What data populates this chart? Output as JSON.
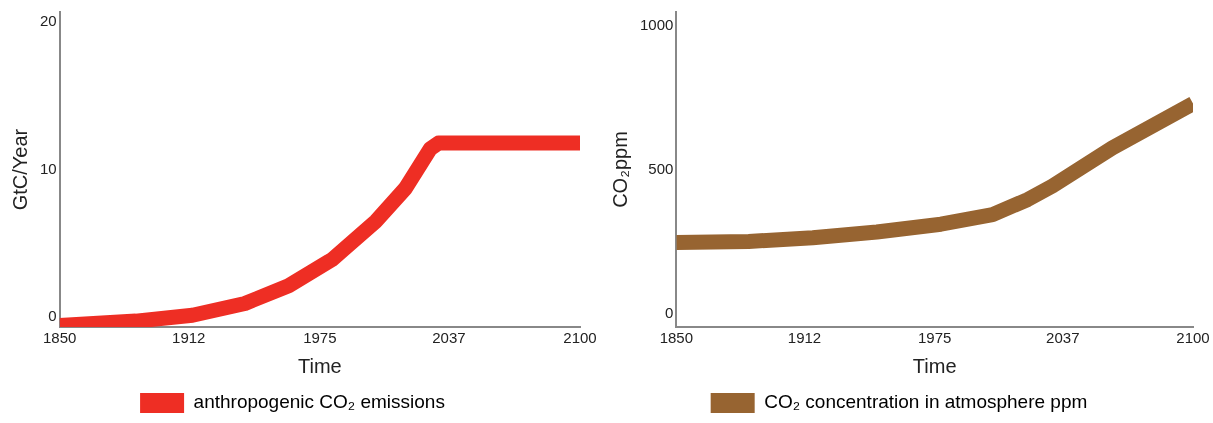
{
  "chart_data": [
    {
      "type": "line",
      "xlabel": "Time",
      "ylabel": "GtC/Year",
      "xlim": [
        1850,
        2100
      ],
      "xticks": [
        1850,
        1912,
        1975,
        2037,
        2100
      ],
      "ylim": [
        -0.7,
        20.7
      ],
      "yticks": [
        0,
        10,
        20
      ],
      "grid": false,
      "legend": "bottom",
      "marker": "none",
      "line_style": "solid",
      "series": [
        {
          "name": "anthropogenic CO₂ emissions",
          "color": "#ee2e24",
          "x": [
            1850,
            1886.6,
            1913.8,
            1939,
            1960,
            1981,
            2002,
            2016,
            2028,
            2032,
            2100
          ],
          "values": [
            -0.6,
            -0.3,
            0.1,
            0.9,
            2.1,
            3.9,
            6.5,
            8.7,
            11.4,
            11.8,
            11.8
          ]
        }
      ]
    },
    {
      "type": "line",
      "xlabel": "Time",
      "ylabel": "CO₂ppm",
      "xlim": [
        1850,
        2100
      ],
      "xticks": [
        1850,
        1912,
        1975,
        2037,
        2100
      ],
      "ylim": [
        -47,
        1050
      ],
      "yticks": [
        0,
        500,
        1000
      ],
      "grid": false,
      "legend": "bottom",
      "marker": "none",
      "line_style": "solid",
      "series": [
        {
          "name": "CO₂ concentration in atmosphere ppm",
          "color": "#976431",
          "x": [
            1850,
            1885,
            1916,
            1947,
            1978,
            2003,
            2020,
            2032,
            2061,
            2100
          ],
          "values": [
            247,
            251,
            264,
            284,
            311,
            344,
            397,
            444,
            577,
            731
          ]
        }
      ]
    }
  ]
}
